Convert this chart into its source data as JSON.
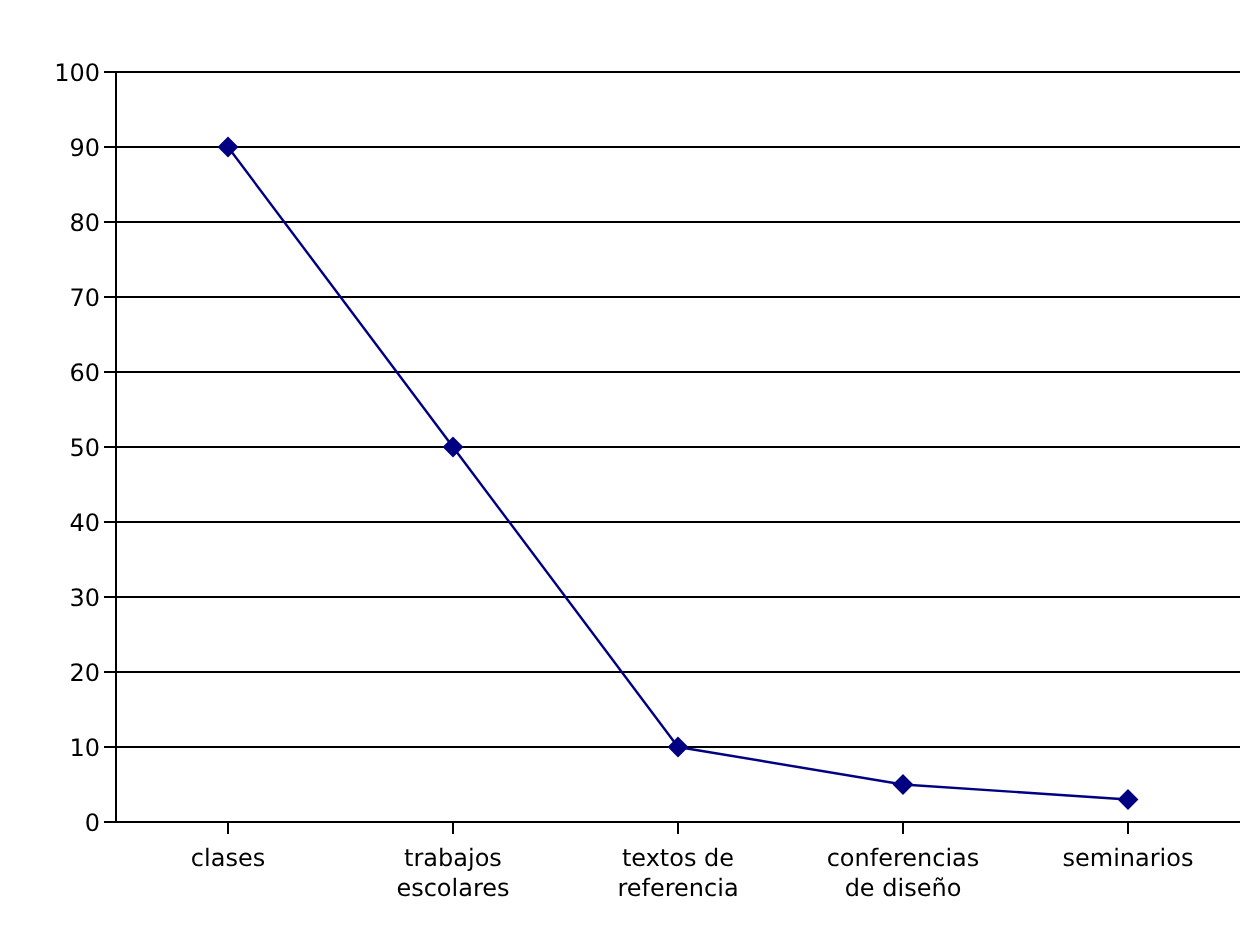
{
  "chart_data": {
    "type": "line",
    "categories": [
      "clases",
      "trabajos escolares",
      "textos de referencia",
      "conferencias de diseño",
      "seminarios"
    ],
    "series": [
      {
        "color": "#000080",
        "values": [
          90,
          50,
          10,
          5,
          3
        ]
      }
    ],
    "ylim": [
      0,
      100
    ],
    "yticks": [
      0,
      10,
      20,
      30,
      40,
      50,
      60,
      70,
      80,
      90,
      100
    ],
    "grid": "y",
    "marker": "diamond",
    "line_style": "solid"
  }
}
